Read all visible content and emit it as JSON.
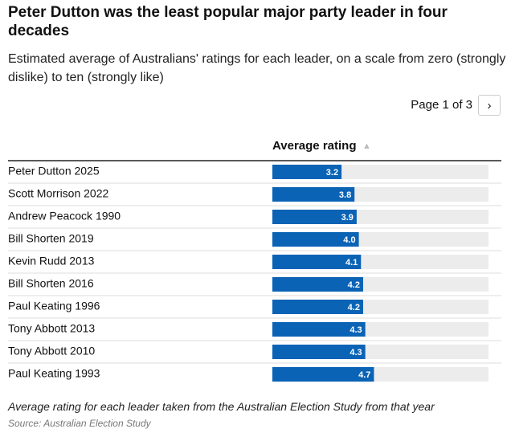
{
  "chart_data": {
    "type": "bar",
    "title": "Peter Dutton was the least popular major party leader in four decades",
    "subtitle": "Estimated average of Australians' ratings for each leader, on a scale from zero (strongly dislike) to ten (strongly like)",
    "pagination": "Page 1 of 3",
    "column_header": "Average rating",
    "categories": [
      "Peter Dutton 2025",
      "Scott Morrison 2022",
      "Andrew Peacock 1990",
      "Bill Shorten 2019",
      "Kevin Rudd 2013",
      "Bill Shorten 2016",
      "Paul Keating 1996",
      "Tony Abbott 2013",
      "Tony Abbott 2010",
      "Paul Keating 1993"
    ],
    "values": [
      3.2,
      3.8,
      3.9,
      4.0,
      4.1,
      4.2,
      4.2,
      4.3,
      4.3,
      4.7
    ],
    "value_labels": [
      "3.2",
      "3.8",
      "3.9",
      "4.0",
      "4.1",
      "4.2",
      "4.2",
      "4.3",
      "4.3",
      "4.7"
    ],
    "xlim": [
      0,
      10
    ],
    "color": "#0a63b5",
    "note": "Average rating for each leader taken from the Australian Election Study from that year",
    "source": "Source: Australian Election Study"
  }
}
